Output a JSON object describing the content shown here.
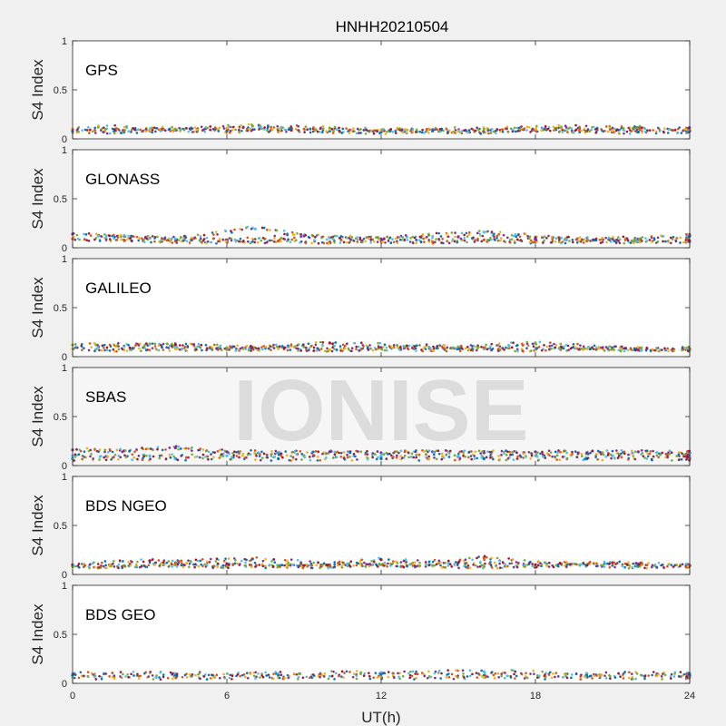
{
  "chart_data": {
    "type": "scatter",
    "title": "HNHH20210504",
    "xlabel": "UT(h)",
    "ylabel": "S4 Index",
    "xlim": [
      0,
      24
    ],
    "ylim": [
      0,
      1
    ],
    "xticks": [
      "0",
      "6",
      "12",
      "18",
      "24"
    ],
    "yticks": [
      "0",
      "0.5",
      "1"
    ],
    "watermark": "IONISE",
    "colors": [
      "#0072BD",
      "#D95319",
      "#EDB120",
      "#7E2F8E",
      "#77AC30",
      "#4DBEEE",
      "#A2142F"
    ],
    "panels": [
      {
        "system": "GPS",
        "series": [
          {
            "x": [
              0,
              2,
              4,
              6,
              8,
              10,
              12,
              14,
              16,
              18,
              20,
              22,
              24
            ],
            "y": [
              0.08,
              0.07,
              0.09,
              0.08,
              0.09,
              0.08,
              0.07,
              0.08,
              0.07,
              0.09,
              0.08,
              0.07,
              0.08
            ]
          },
          {
            "x": [
              0,
              3,
              6,
              9,
              12,
              15,
              18,
              21,
              24
            ],
            "y": [
              0.1,
              0.09,
              0.11,
              0.1,
              0.09,
              0.08,
              0.1,
              0.09,
              0.1
            ]
          },
          {
            "x": [
              1,
              4,
              7,
              10,
              13,
              16,
              19,
              22
            ],
            "y": [
              0.12,
              0.1,
              0.13,
              0.11,
              0.09,
              0.1,
              0.12,
              0.11
            ]
          }
        ]
      },
      {
        "system": "GLONASS",
        "series": [
          {
            "x": [
              0,
              2,
              4,
              6,
              8,
              10,
              12,
              14,
              16,
              18,
              20,
              22,
              24
            ],
            "y": [
              0.09,
              0.08,
              0.07,
              0.06,
              0.07,
              0.06,
              0.07,
              0.06,
              0.08,
              0.06,
              0.07,
              0.06,
              0.07
            ]
          },
          {
            "x": [
              0,
              3,
              6,
              9,
              12,
              15,
              18,
              21,
              24
            ],
            "y": [
              0.14,
              0.1,
              0.08,
              0.12,
              0.09,
              0.11,
              0.1,
              0.09,
              0.12
            ]
          },
          {
            "x": [
              1,
              4,
              7,
              10,
              13,
              16,
              19,
              22
            ],
            "y": [
              0.12,
              0.09,
              0.2,
              0.1,
              0.11,
              0.16,
              0.1,
              0.08
            ]
          }
        ]
      },
      {
        "system": "GALILEO",
        "series": [
          {
            "x": [
              0,
              2,
              4,
              6,
              8,
              10,
              12,
              14,
              16,
              18,
              20,
              22,
              24
            ],
            "y": [
              0.08,
              0.07,
              0.08,
              0.07,
              0.08,
              0.07,
              0.08,
              0.07,
              0.08,
              0.07,
              0.08,
              0.07,
              0.08
            ]
          },
          {
            "x": [
              0,
              3,
              6,
              9,
              12,
              15,
              18,
              21,
              24
            ],
            "y": [
              0.12,
              0.13,
              0.09,
              0.1,
              0.09,
              0.1,
              0.14,
              0.08,
              0.07
            ]
          },
          {
            "x": [
              1,
              4,
              7,
              10,
              13,
              16,
              19,
              22
            ],
            "y": [
              0.1,
              0.12,
              0.09,
              0.14,
              0.11,
              0.09,
              0.1,
              0.08
            ]
          }
        ]
      },
      {
        "system": "SBAS",
        "series": [
          {
            "x": [
              0,
              2,
              4,
              6,
              8,
              10,
              12,
              14,
              16,
              18,
              20,
              22,
              24
            ],
            "y": [
              0.16,
              0.15,
              0.18,
              0.14,
              0.13,
              0.14,
              0.13,
              0.14,
              0.13,
              0.14,
              0.13,
              0.14,
              0.13
            ]
          },
          {
            "x": [
              0,
              3,
              6,
              9,
              12,
              15,
              18,
              21,
              24
            ],
            "y": [
              0.1,
              0.1,
              0.1,
              0.1,
              0.1,
              0.1,
              0.1,
              0.1,
              0.1
            ]
          },
          {
            "x": [
              0,
              4,
              8,
              12,
              16,
              20,
              24
            ],
            "y": [
              0.07,
              0.07,
              0.07,
              0.07,
              0.07,
              0.07,
              0.07
            ]
          }
        ]
      },
      {
        "system": "BDS NGEO",
        "series": [
          {
            "x": [
              0,
              2,
              4,
              6,
              8,
              10,
              12,
              14,
              16,
              18,
              20,
              22,
              24
            ],
            "y": [
              0.08,
              0.09,
              0.1,
              0.08,
              0.09,
              0.08,
              0.1,
              0.09,
              0.08,
              0.09,
              0.1,
              0.08,
              0.09
            ]
          },
          {
            "x": [
              0,
              3,
              6,
              9,
              12,
              15,
              18,
              21,
              24
            ],
            "y": [
              0.1,
              0.14,
              0.11,
              0.09,
              0.15,
              0.12,
              0.1,
              0.12,
              0.09
            ]
          },
          {
            "x": [
              1,
              4,
              7,
              10,
              13,
              16,
              19,
              22
            ],
            "y": [
              0.07,
              0.12,
              0.16,
              0.1,
              0.09,
              0.17,
              0.11,
              0.1
            ]
          }
        ]
      },
      {
        "system": "BDS GEO",
        "series": [
          {
            "x": [
              0,
              4,
              8,
              12,
              16,
              20,
              24
            ],
            "y": [
              0.1,
              0.1,
              0.1,
              0.11,
              0.12,
              0.1,
              0.1
            ]
          },
          {
            "x": [
              0,
              4,
              8,
              12,
              16,
              20,
              24
            ],
            "y": [
              0.08,
              0.08,
              0.08,
              0.09,
              0.08,
              0.08,
              0.08
            ]
          },
          {
            "x": [
              0,
              4,
              8,
              12,
              16,
              20,
              24
            ],
            "y": [
              0.06,
              0.06,
              0.06,
              0.06,
              0.06,
              0.06,
              0.06
            ]
          }
        ]
      }
    ]
  }
}
